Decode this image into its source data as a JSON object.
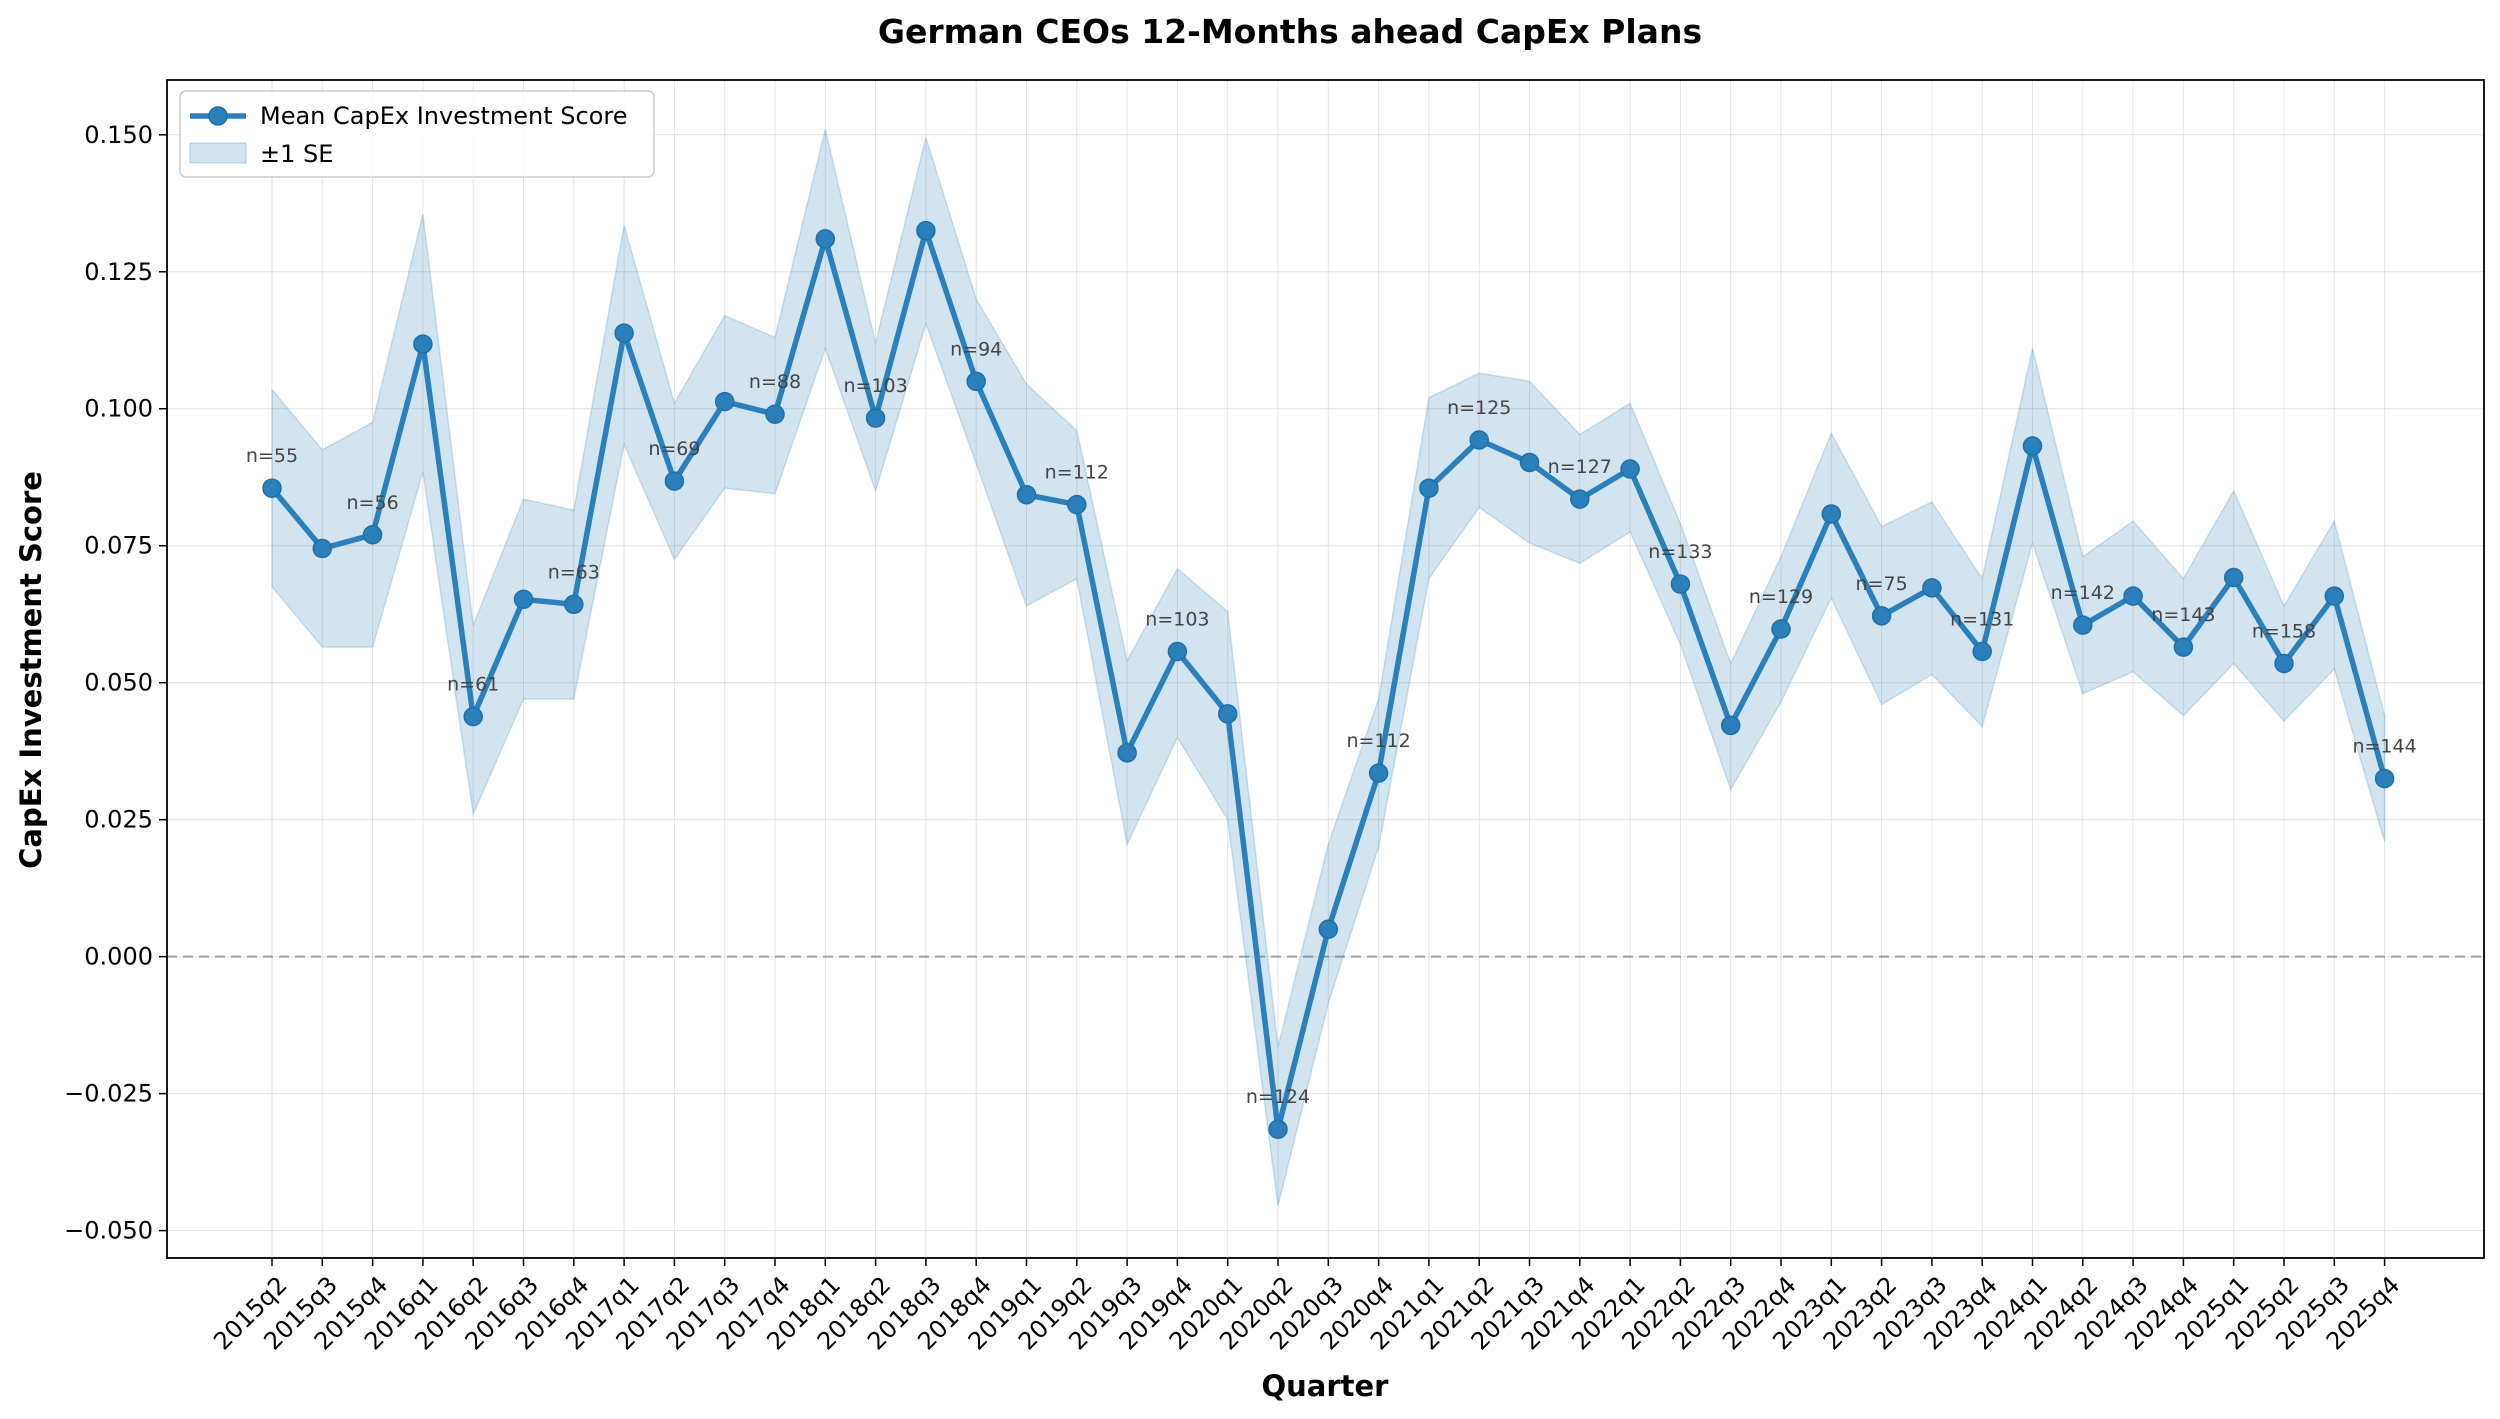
{
  "chart_data": {
    "type": "line",
    "title": "German CEOs 12-Months ahead CapEx Plans",
    "xlabel": "Quarter",
    "ylabel": "CapEx Investment Score",
    "ylim": [
      -0.055,
      0.16
    ],
    "yticks": [
      -0.05,
      -0.025,
      0.0,
      0.025,
      0.05,
      0.075,
      0.1,
      0.125,
      0.15
    ],
    "ytick_labels": [
      "−0.050",
      "−0.025",
      "0.000",
      "0.025",
      "0.050",
      "0.075",
      "0.100",
      "0.125",
      "0.150"
    ],
    "grid": true,
    "reference_line": 0.0,
    "legend": {
      "location": "upper-left",
      "entries": [
        "Mean CapEx Investment Score",
        "±1 SE"
      ]
    },
    "categories": [
      "2015q2",
      "2015q3",
      "2015q4",
      "2016q1",
      "2016q2",
      "2016q3",
      "2016q4",
      "2017q1",
      "2017q2",
      "2017q3",
      "2017q4",
      "2018q1",
      "2018q2",
      "2018q3",
      "2018q4",
      "2019q1",
      "2019q2",
      "2019q3",
      "2019q4",
      "2020q1",
      "2020q2",
      "2020q3",
      "2020q4",
      "2021q1",
      "2021q2",
      "2021q3",
      "2021q4",
      "2022q1",
      "2022q2",
      "2022q3",
      "2022q4",
      "2023q1",
      "2023q2",
      "2023q3",
      "2023q4",
      "2024q1",
      "2024q2",
      "2024q3",
      "2024q4",
      "2025q1",
      "2025q2",
      "2025q3",
      "2025q4"
    ],
    "series": [
      {
        "name": "Mean CapEx Investment Score",
        "values": [
          0.0855,
          0.0745,
          0.077,
          0.1118,
          0.0438,
          0.0652,
          0.0643,
          0.1138,
          0.0868,
          0.1013,
          0.099,
          0.131,
          0.0983,
          0.1325,
          0.105,
          0.0843,
          0.0825,
          0.0372,
          0.0557,
          0.0443,
          -0.0315,
          0.005,
          0.0335,
          0.0855,
          0.0943,
          0.0902,
          0.0835,
          0.089,
          0.068,
          0.0422,
          0.0598,
          0.0808,
          0.0622,
          0.0673,
          0.0557,
          0.0932,
          0.0605,
          0.0658,
          0.0565,
          0.0692,
          0.0535,
          0.0658,
          0.0325
        ]
      },
      {
        "name": "±1 SE",
        "lower": [
          0.0675,
          0.0565,
          0.0565,
          0.0885,
          0.026,
          0.047,
          0.047,
          0.0935,
          0.0725,
          0.0855,
          0.0845,
          0.111,
          0.085,
          0.1155,
          0.09,
          0.064,
          0.069,
          0.0205,
          0.04,
          0.025,
          -0.0455,
          -0.0085,
          0.02,
          0.069,
          0.082,
          0.0755,
          0.0718,
          0.0775,
          0.057,
          0.0305,
          0.0465,
          0.0655,
          0.046,
          0.0515,
          0.042,
          0.0755,
          0.048,
          0.052,
          0.044,
          0.0535,
          0.043,
          0.0525,
          0.021
        ],
        "upper": [
          0.1035,
          0.0925,
          0.0975,
          0.1355,
          0.0605,
          0.0835,
          0.0815,
          0.1335,
          0.101,
          0.117,
          0.113,
          0.151,
          0.112,
          0.1495,
          0.12,
          0.1045,
          0.096,
          0.054,
          0.0708,
          0.063,
          -0.0165,
          0.0205,
          0.047,
          0.102,
          0.1065,
          0.105,
          0.0953,
          0.101,
          0.079,
          0.0535,
          0.073,
          0.0955,
          0.0785,
          0.083,
          0.069,
          0.111,
          0.073,
          0.0795,
          0.069,
          0.085,
          0.064,
          0.0795,
          0.044
        ]
      }
    ],
    "annotations": [
      {
        "category": "2015q2",
        "text": "n=55"
      },
      {
        "category": "2015q4",
        "text": "n=56"
      },
      {
        "category": "2016q2",
        "text": "n=61"
      },
      {
        "category": "2016q4",
        "text": "n=63"
      },
      {
        "category": "2017q2",
        "text": "n=69"
      },
      {
        "category": "2017q4",
        "text": "n=88"
      },
      {
        "category": "2018q2",
        "text": "n=103"
      },
      {
        "category": "2018q4",
        "text": "n=94"
      },
      {
        "category": "2019q2",
        "text": "n=112"
      },
      {
        "category": "2019q4",
        "text": "n=103"
      },
      {
        "category": "2020q2",
        "text": "n=124"
      },
      {
        "category": "2020q4",
        "text": "n=112"
      },
      {
        "category": "2021q2",
        "text": "n=125"
      },
      {
        "category": "2021q4",
        "text": "n=127"
      },
      {
        "category": "2022q2",
        "text": "n=133"
      },
      {
        "category": "2022q4",
        "text": "n=129"
      },
      {
        "category": "2023q2",
        "text": "n=75"
      },
      {
        "category": "2023q4",
        "text": "n=131"
      },
      {
        "category": "2024q2",
        "text": "n=142"
      },
      {
        "category": "2024q4",
        "text": "n=143"
      },
      {
        "category": "2025q2",
        "text": "n=158"
      },
      {
        "category": "2025q4",
        "text": "n=144"
      }
    ]
  },
  "colors": {
    "line": "#2b7fba",
    "band": "#1f77b4",
    "annotation": "#444444",
    "grid": "#b0b0b0",
    "zero_line": "#7f7f7f"
  }
}
